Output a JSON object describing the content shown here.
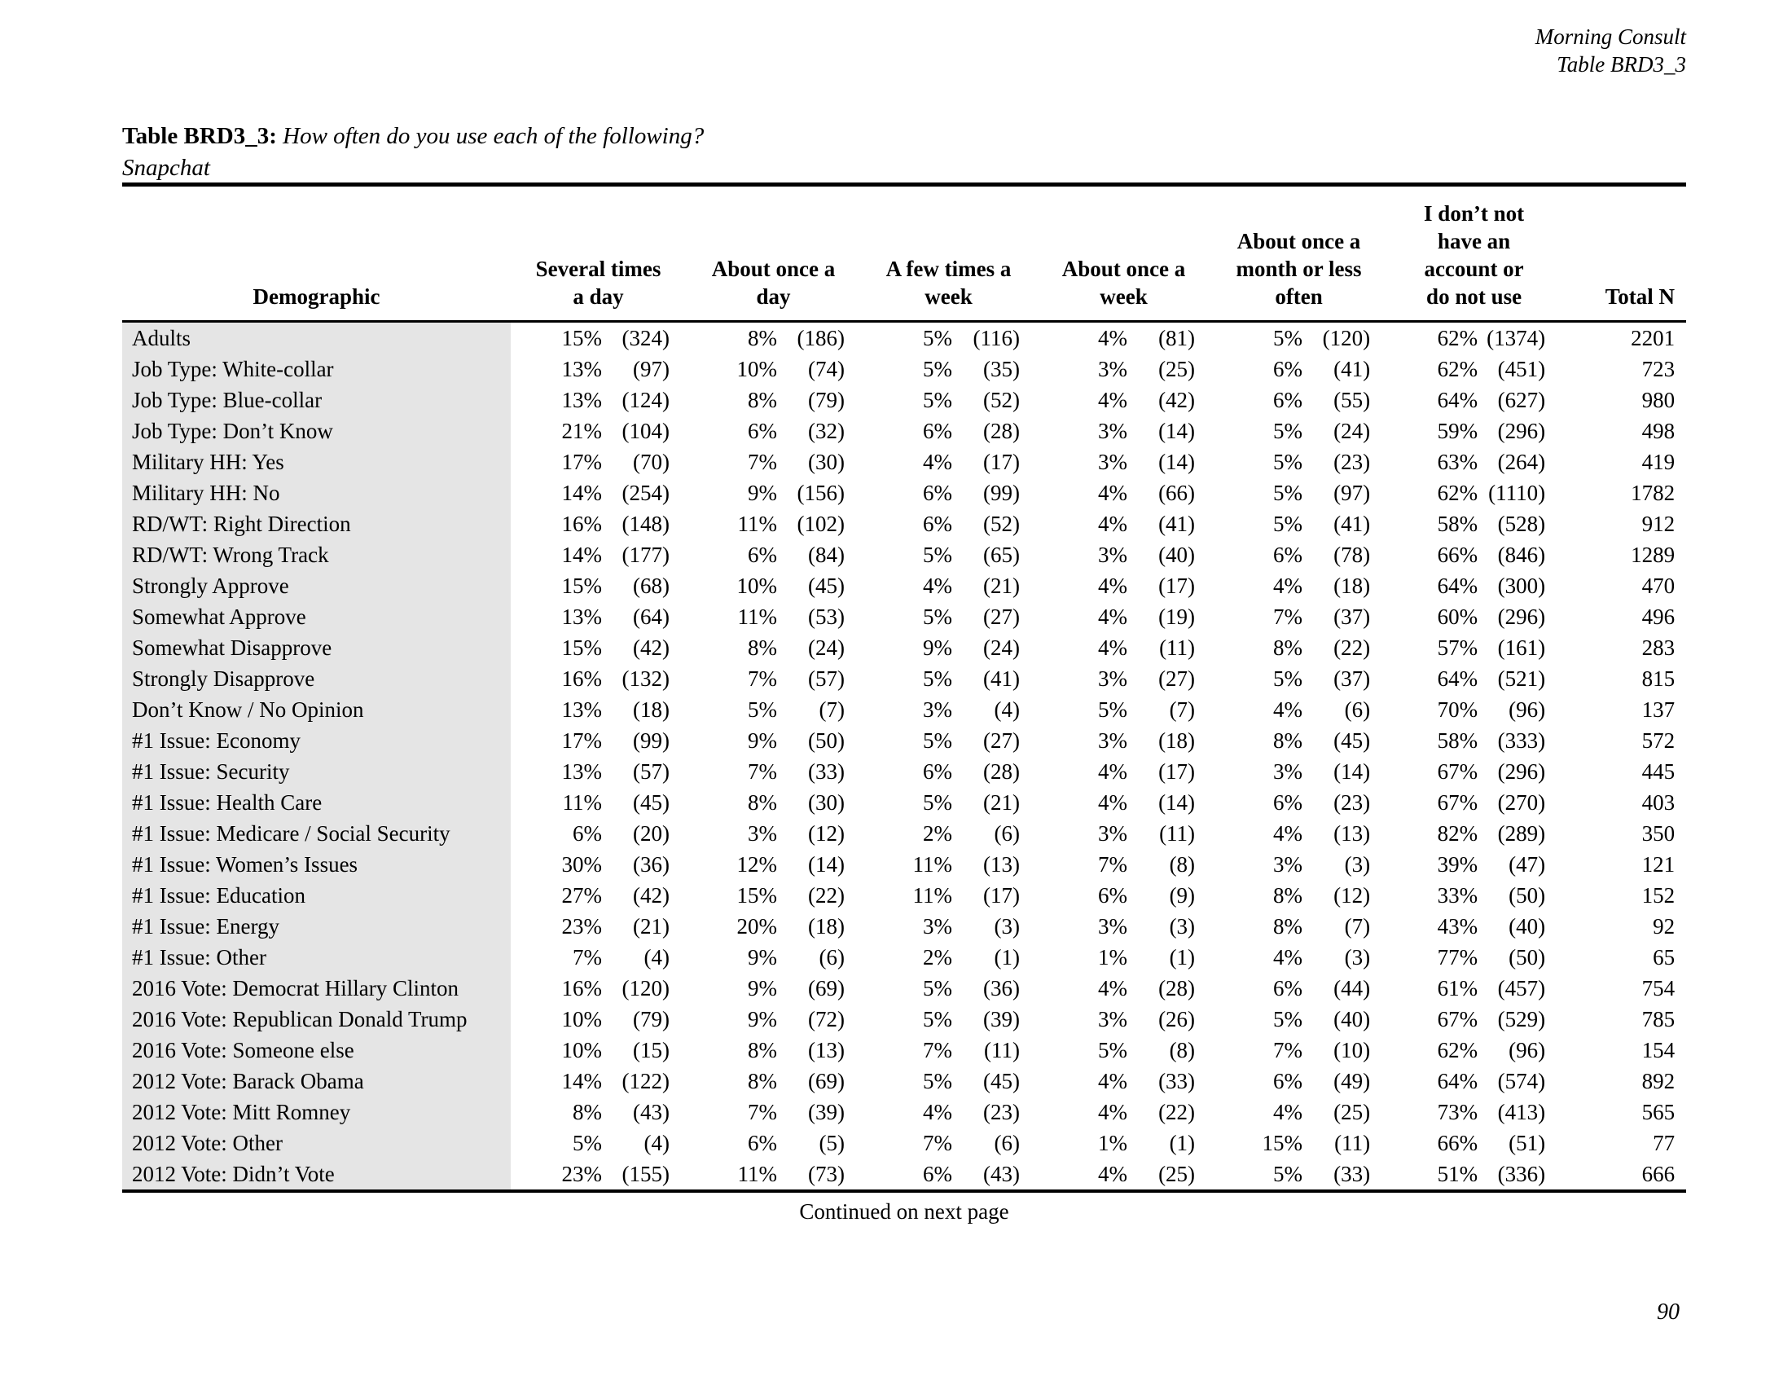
{
  "document": {
    "header_right_line1": "Morning Consult",
    "header_right_line2": "Table BRD3_3",
    "title_label": "Table BRD3_3:",
    "title_question": "How often do you use each of the following?",
    "subject": "Snapchat",
    "continued_note": "Continued on next page",
    "page_number": "90"
  },
  "table": {
    "columns": [
      {
        "label": "Demographic"
      },
      {
        "label": "Several times\na day"
      },
      {
        "label": "About once a\nday"
      },
      {
        "label": "A few times a\nweek"
      },
      {
        "label": "About once a\nweek"
      },
      {
        "label": "About once a\nmonth or less\noften"
      },
      {
        "label": "I don’t not\nhave an\naccount or\ndo not use"
      },
      {
        "label": "Total N"
      }
    ],
    "rows": [
      {
        "label": "Adults",
        "values": [
          "15%",
          "(324)",
          "8%",
          "(186)",
          "5%",
          "(116)",
          "4%",
          "(81)",
          "5%",
          "(120)",
          "62%",
          "(1374)",
          "2201"
        ]
      },
      {
        "label": "Job Type: White-collar",
        "values": [
          "13%",
          "(97)",
          "10%",
          "(74)",
          "5%",
          "(35)",
          "3%",
          "(25)",
          "6%",
          "(41)",
          "62%",
          "(451)",
          "723"
        ]
      },
      {
        "label": "Job Type: Blue-collar",
        "values": [
          "13%",
          "(124)",
          "8%",
          "(79)",
          "5%",
          "(52)",
          "4%",
          "(42)",
          "6%",
          "(55)",
          "64%",
          "(627)",
          "980"
        ]
      },
      {
        "label": "Job Type: Don’t Know",
        "values": [
          "21%",
          "(104)",
          "6%",
          "(32)",
          "6%",
          "(28)",
          "3%",
          "(14)",
          "5%",
          "(24)",
          "59%",
          "(296)",
          "498"
        ]
      },
      {
        "label": "Military HH: Yes",
        "values": [
          "17%",
          "(70)",
          "7%",
          "(30)",
          "4%",
          "(17)",
          "3%",
          "(14)",
          "5%",
          "(23)",
          "63%",
          "(264)",
          "419"
        ]
      },
      {
        "label": "Military HH: No",
        "values": [
          "14%",
          "(254)",
          "9%",
          "(156)",
          "6%",
          "(99)",
          "4%",
          "(66)",
          "5%",
          "(97)",
          "62%",
          "(1110)",
          "1782"
        ]
      },
      {
        "label": "RD/WT: Right Direction",
        "values": [
          "16%",
          "(148)",
          "11%",
          "(102)",
          "6%",
          "(52)",
          "4%",
          "(41)",
          "5%",
          "(41)",
          "58%",
          "(528)",
          "912"
        ]
      },
      {
        "label": "RD/WT: Wrong Track",
        "values": [
          "14%",
          "(177)",
          "6%",
          "(84)",
          "5%",
          "(65)",
          "3%",
          "(40)",
          "6%",
          "(78)",
          "66%",
          "(846)",
          "1289"
        ]
      },
      {
        "label": "Strongly Approve",
        "values": [
          "15%",
          "(68)",
          "10%",
          "(45)",
          "4%",
          "(21)",
          "4%",
          "(17)",
          "4%",
          "(18)",
          "64%",
          "(300)",
          "470"
        ]
      },
      {
        "label": "Somewhat Approve",
        "values": [
          "13%",
          "(64)",
          "11%",
          "(53)",
          "5%",
          "(27)",
          "4%",
          "(19)",
          "7%",
          "(37)",
          "60%",
          "(296)",
          "496"
        ]
      },
      {
        "label": "Somewhat Disapprove",
        "values": [
          "15%",
          "(42)",
          "8%",
          "(24)",
          "9%",
          "(24)",
          "4%",
          "(11)",
          "8%",
          "(22)",
          "57%",
          "(161)",
          "283"
        ]
      },
      {
        "label": "Strongly Disapprove",
        "values": [
          "16%",
          "(132)",
          "7%",
          "(57)",
          "5%",
          "(41)",
          "3%",
          "(27)",
          "5%",
          "(37)",
          "64%",
          "(521)",
          "815"
        ]
      },
      {
        "label": "Don’t Know / No Opinion",
        "values": [
          "13%",
          "(18)",
          "5%",
          "(7)",
          "3%",
          "(4)",
          "5%",
          "(7)",
          "4%",
          "(6)",
          "70%",
          "(96)",
          "137"
        ]
      },
      {
        "label": "#1 Issue: Economy",
        "values": [
          "17%",
          "(99)",
          "9%",
          "(50)",
          "5%",
          "(27)",
          "3%",
          "(18)",
          "8%",
          "(45)",
          "58%",
          "(333)",
          "572"
        ]
      },
      {
        "label": "#1 Issue: Security",
        "values": [
          "13%",
          "(57)",
          "7%",
          "(33)",
          "6%",
          "(28)",
          "4%",
          "(17)",
          "3%",
          "(14)",
          "67%",
          "(296)",
          "445"
        ]
      },
      {
        "label": "#1 Issue: Health Care",
        "values": [
          "11%",
          "(45)",
          "8%",
          "(30)",
          "5%",
          "(21)",
          "4%",
          "(14)",
          "6%",
          "(23)",
          "67%",
          "(270)",
          "403"
        ]
      },
      {
        "label": "#1 Issue: Medicare / Social Security",
        "values": [
          "6%",
          "(20)",
          "3%",
          "(12)",
          "2%",
          "(6)",
          "3%",
          "(11)",
          "4%",
          "(13)",
          "82%",
          "(289)",
          "350"
        ]
      },
      {
        "label": "#1 Issue: Women’s Issues",
        "values": [
          "30%",
          "(36)",
          "12%",
          "(14)",
          "11%",
          "(13)",
          "7%",
          "(8)",
          "3%",
          "(3)",
          "39%",
          "(47)",
          "121"
        ]
      },
      {
        "label": "#1 Issue: Education",
        "values": [
          "27%",
          "(42)",
          "15%",
          "(22)",
          "11%",
          "(17)",
          "6%",
          "(9)",
          "8%",
          "(12)",
          "33%",
          "(50)",
          "152"
        ]
      },
      {
        "label": "#1 Issue: Energy",
        "values": [
          "23%",
          "(21)",
          "20%",
          "(18)",
          "3%",
          "(3)",
          "3%",
          "(3)",
          "8%",
          "(7)",
          "43%",
          "(40)",
          "92"
        ]
      },
      {
        "label": "#1 Issue: Other",
        "values": [
          "7%",
          "(4)",
          "9%",
          "(6)",
          "2%",
          "(1)",
          "1%",
          "(1)",
          "4%",
          "(3)",
          "77%",
          "(50)",
          "65"
        ]
      },
      {
        "label": "2016 Vote: Democrat Hillary Clinton",
        "values": [
          "16%",
          "(120)",
          "9%",
          "(69)",
          "5%",
          "(36)",
          "4%",
          "(28)",
          "6%",
          "(44)",
          "61%",
          "(457)",
          "754"
        ]
      },
      {
        "label": "2016 Vote: Republican Donald Trump",
        "values": [
          "10%",
          "(79)",
          "9%",
          "(72)",
          "5%",
          "(39)",
          "3%",
          "(26)",
          "5%",
          "(40)",
          "67%",
          "(529)",
          "785"
        ]
      },
      {
        "label": "2016 Vote: Someone else",
        "values": [
          "10%",
          "(15)",
          "8%",
          "(13)",
          "7%",
          "(11)",
          "5%",
          "(8)",
          "7%",
          "(10)",
          "62%",
          "(96)",
          "154"
        ]
      },
      {
        "label": "2012 Vote: Barack Obama",
        "values": [
          "14%",
          "(122)",
          "8%",
          "(69)",
          "5%",
          "(45)",
          "4%",
          "(33)",
          "6%",
          "(49)",
          "64%",
          "(574)",
          "892"
        ]
      },
      {
        "label": "2012 Vote: Mitt Romney",
        "values": [
          "8%",
          "(43)",
          "7%",
          "(39)",
          "4%",
          "(23)",
          "4%",
          "(22)",
          "4%",
          "(25)",
          "73%",
          "(413)",
          "565"
        ]
      },
      {
        "label": "2012 Vote: Other",
        "values": [
          "5%",
          "(4)",
          "6%",
          "(5)",
          "7%",
          "(6)",
          "1%",
          "(1)",
          "15%",
          "(11)",
          "66%",
          "(51)",
          "77"
        ]
      },
      {
        "label": "2012 Vote: Didn’t Vote",
        "values": [
          "23%",
          "(155)",
          "11%",
          "(73)",
          "6%",
          "(43)",
          "4%",
          "(25)",
          "5%",
          "(33)",
          "51%",
          "(336)",
          "666"
        ]
      }
    ]
  }
}
